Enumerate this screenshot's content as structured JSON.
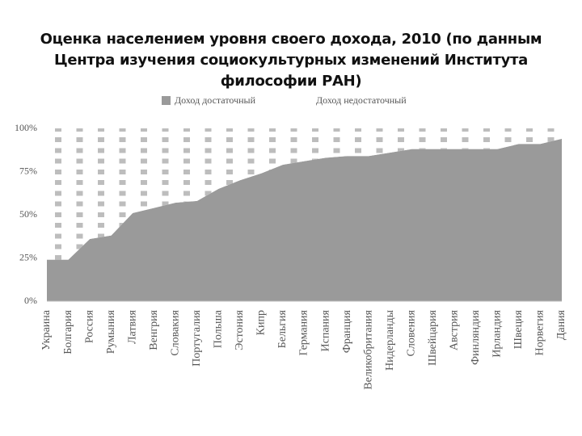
{
  "chart_data": {
    "type": "stacked_area",
    "title": "Оценка населением уровня своего дохода, 2010 (по данным Центра изучения социокультурных изменений Института философии РАН)",
    "categories": [
      "Украина",
      "Болгария",
      "Россия",
      "Румыния",
      "Латвия",
      "Венгрия",
      "Словакия",
      "Португалия",
      "Польша",
      "Эстония",
      "Кипр",
      "Бельгия",
      "Германия",
      "Испания",
      "Франция",
      "Великобритания",
      "Нидерланды",
      "Словения",
      "Швейцария",
      "Австрия",
      "Финляндия",
      "Ирландия",
      "Швеция",
      "Норвегия",
      "Дания"
    ],
    "series": [
      {
        "name": "Доход достаточный",
        "color": "#9a9a9a",
        "values": [
          24,
          24,
          36,
          38,
          51,
          54,
          57,
          58,
          65,
          70,
          74,
          79,
          81,
          83,
          84,
          84,
          86,
          88,
          88,
          88,
          88,
          88,
          91,
          91,
          94
        ]
      },
      {
        "name": "Доход недостаточный",
        "color": "#bdbdbd",
        "values": [
          76,
          76,
          64,
          62,
          49,
          46,
          43,
          42,
          35,
          30,
          26,
          21,
          19,
          17,
          16,
          16,
          14,
          12,
          12,
          12,
          12,
          12,
          9,
          9,
          6
        ]
      }
    ],
    "ylim": [
      0,
      100
    ],
    "yticks": [
      {
        "value": 0,
        "label": "0%"
      },
      {
        "value": 25,
        "label": "25%"
      },
      {
        "value": 50,
        "label": "50%"
      },
      {
        "value": 75,
        "label": "75%"
      },
      {
        "value": 100,
        "label": "100%"
      }
    ],
    "grid": false,
    "legend": "top"
  }
}
